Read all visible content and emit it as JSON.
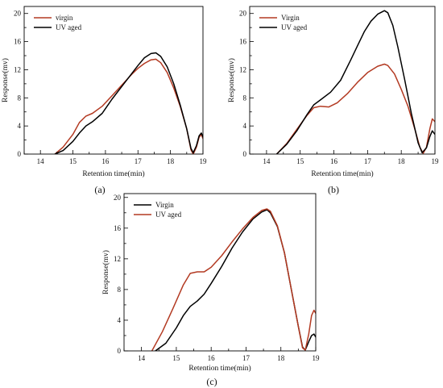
{
  "colors": {
    "red": "#b33a22",
    "black": "#000000"
  },
  "chart_data": [
    {
      "type": "line",
      "panel_label": "(a)",
      "xlabel": "Retention time(min)",
      "ylabel": "Response(mv)",
      "xlim": [
        13.5,
        19
      ],
      "ylim": [
        0,
        21
      ],
      "xticks": [
        14,
        15,
        16,
        17,
        18,
        19
      ],
      "yticks": [
        0,
        4,
        8,
        12,
        16,
        20
      ],
      "grid": false,
      "legend_position": "top-left",
      "series": [
        {
          "name": "virgin",
          "color": "#b33a22",
          "points": [
            [
              14.45,
              0
            ],
            [
              14.7,
              1.0
            ],
            [
              15.0,
              2.8
            ],
            [
              15.2,
              4.5
            ],
            [
              15.4,
              5.4
            ],
            [
              15.6,
              5.8
            ],
            [
              15.9,
              6.8
            ],
            [
              16.2,
              8.3
            ],
            [
              16.5,
              9.8
            ],
            [
              16.8,
              11.3
            ],
            [
              17.0,
              12.2
            ],
            [
              17.2,
              12.9
            ],
            [
              17.4,
              13.4
            ],
            [
              17.55,
              13.5
            ],
            [
              17.7,
              13.0
            ],
            [
              17.9,
              11.6
            ],
            [
              18.1,
              9.4
            ],
            [
              18.3,
              6.8
            ],
            [
              18.5,
              3.6
            ],
            [
              18.63,
              0.6
            ],
            [
              18.7,
              0
            ],
            [
              18.8,
              1.0
            ],
            [
              18.88,
              2.4
            ],
            [
              18.95,
              2.8
            ],
            [
              19.0,
              2.2
            ]
          ]
        },
        {
          "name": "UV aged",
          "color": "#000000",
          "points": [
            [
              14.45,
              0
            ],
            [
              14.7,
              0.5
            ],
            [
              15.0,
              1.8
            ],
            [
              15.2,
              3.0
            ],
            [
              15.4,
              4.0
            ],
            [
              15.6,
              4.6
            ],
            [
              15.9,
              5.8
            ],
            [
              16.2,
              7.8
            ],
            [
              16.5,
              9.6
            ],
            [
              16.8,
              11.4
            ],
            [
              17.0,
              12.6
            ],
            [
              17.2,
              13.7
            ],
            [
              17.4,
              14.3
            ],
            [
              17.55,
              14.4
            ],
            [
              17.7,
              13.9
            ],
            [
              17.9,
              12.4
            ],
            [
              18.1,
              10.0
            ],
            [
              18.3,
              7.0
            ],
            [
              18.5,
              3.6
            ],
            [
              18.63,
              0.8
            ],
            [
              18.7,
              0.2
            ],
            [
              18.8,
              1.2
            ],
            [
              18.88,
              2.6
            ],
            [
              18.95,
              3.0
            ],
            [
              19.0,
              2.4
            ]
          ]
        }
      ]
    },
    {
      "type": "line",
      "panel_label": "(b)",
      "xlabel": "Retention time(min)",
      "ylabel": "Response(mv)",
      "xlim": [
        13.5,
        19
      ],
      "ylim": [
        0,
        21
      ],
      "xticks": [
        14,
        15,
        16,
        17,
        18,
        19
      ],
      "yticks": [
        0,
        4,
        8,
        12,
        16,
        20
      ],
      "grid": false,
      "legend_position": "top-left",
      "series": [
        {
          "name": "Virgin",
          "color": "#b33a22",
          "points": [
            [
              14.3,
              0
            ],
            [
              14.6,
              1.5
            ],
            [
              14.9,
              3.5
            ],
            [
              15.2,
              5.5
            ],
            [
              15.4,
              6.6
            ],
            [
              15.6,
              6.8
            ],
            [
              15.85,
              6.7
            ],
            [
              16.1,
              7.3
            ],
            [
              16.4,
              8.6
            ],
            [
              16.7,
              10.2
            ],
            [
              17.0,
              11.6
            ],
            [
              17.3,
              12.5
            ],
            [
              17.5,
              12.8
            ],
            [
              17.6,
              12.6
            ],
            [
              17.8,
              11.4
            ],
            [
              18.0,
              9.2
            ],
            [
              18.2,
              6.8
            ],
            [
              18.4,
              3.6
            ],
            [
              18.55,
              1.0
            ],
            [
              18.65,
              0.1
            ],
            [
              18.75,
              1.0
            ],
            [
              18.85,
              3.6
            ],
            [
              18.92,
              5.0
            ],
            [
              19.0,
              4.6
            ]
          ]
        },
        {
          "name": "UV aged",
          "color": "#000000",
          "points": [
            [
              14.3,
              0
            ],
            [
              14.6,
              1.4
            ],
            [
              14.9,
              3.3
            ],
            [
              15.2,
              5.6
            ],
            [
              15.4,
              7.0
            ],
            [
              15.6,
              7.7
            ],
            [
              15.9,
              8.8
            ],
            [
              16.2,
              10.5
            ],
            [
              16.5,
              13.4
            ],
            [
              16.7,
              15.4
            ],
            [
              16.9,
              17.4
            ],
            [
              17.1,
              18.9
            ],
            [
              17.3,
              19.9
            ],
            [
              17.5,
              20.4
            ],
            [
              17.6,
              20.1
            ],
            [
              17.75,
              18.3
            ],
            [
              17.9,
              15.2
            ],
            [
              18.1,
              10.6
            ],
            [
              18.3,
              5.8
            ],
            [
              18.5,
              1.6
            ],
            [
              18.62,
              0.2
            ],
            [
              18.75,
              0.9
            ],
            [
              18.85,
              2.5
            ],
            [
              18.92,
              3.3
            ],
            [
              19.0,
              2.8
            ]
          ]
        }
      ]
    },
    {
      "type": "line",
      "panel_label": "(c)",
      "xlabel": "Retention time(min)",
      "ylabel": "Response(mv)",
      "xlim": [
        13.5,
        19
      ],
      "ylim": [
        0,
        20.5
      ],
      "xticks": [
        14,
        15,
        16,
        17,
        18,
        19
      ],
      "yticks": [
        0,
        4,
        8,
        12,
        16,
        20
      ],
      "grid": false,
      "legend_position": "top-left",
      "series": [
        {
          "name": "Virgin",
          "color": "#000000",
          "points": [
            [
              14.4,
              0
            ],
            [
              14.7,
              1.0
            ],
            [
              15.0,
              3.0
            ],
            [
              15.2,
              4.6
            ],
            [
              15.4,
              5.8
            ],
            [
              15.6,
              6.5
            ],
            [
              15.8,
              7.4
            ],
            [
              16.0,
              8.8
            ],
            [
              16.3,
              11.0
            ],
            [
              16.6,
              13.4
            ],
            [
              16.9,
              15.5
            ],
            [
              17.2,
              17.2
            ],
            [
              17.45,
              18.1
            ],
            [
              17.6,
              18.4
            ],
            [
              17.7,
              18.0
            ],
            [
              17.9,
              16.2
            ],
            [
              18.1,
              12.8
            ],
            [
              18.3,
              8.0
            ],
            [
              18.5,
              3.2
            ],
            [
              18.62,
              0.5
            ],
            [
              18.7,
              0.1
            ],
            [
              18.8,
              1.2
            ],
            [
              18.88,
              2.0
            ],
            [
              18.95,
              2.2
            ],
            [
              19.0,
              1.8
            ]
          ]
        },
        {
          "name": "UV aged",
          "color": "#b33a22",
          "points": [
            [
              14.3,
              0
            ],
            [
              14.6,
              2.5
            ],
            [
              14.9,
              5.5
            ],
            [
              15.2,
              8.6
            ],
            [
              15.4,
              10.1
            ],
            [
              15.6,
              10.3
            ],
            [
              15.8,
              10.3
            ],
            [
              16.0,
              10.9
            ],
            [
              16.3,
              12.4
            ],
            [
              16.6,
              14.2
            ],
            [
              16.9,
              15.9
            ],
            [
              17.2,
              17.4
            ],
            [
              17.45,
              18.3
            ],
            [
              17.6,
              18.5
            ],
            [
              17.7,
              18.2
            ],
            [
              17.9,
              16.3
            ],
            [
              18.1,
              12.8
            ],
            [
              18.3,
              8.0
            ],
            [
              18.5,
              3.2
            ],
            [
              18.62,
              0.4
            ],
            [
              18.7,
              0.1
            ],
            [
              18.8,
              2.2
            ],
            [
              18.88,
              4.6
            ],
            [
              18.95,
              5.3
            ],
            [
              19.0,
              4.9
            ]
          ]
        }
      ]
    }
  ]
}
